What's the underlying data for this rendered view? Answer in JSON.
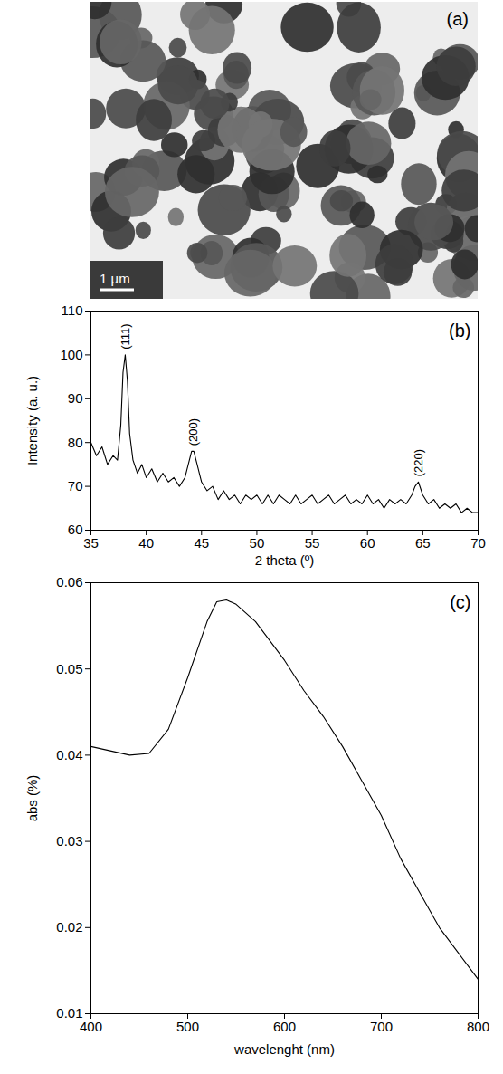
{
  "image_panel": {
    "label": "(a)",
    "scale_bar": "1 µm"
  },
  "chart_data": [
    {
      "type": "line",
      "title": "(b)",
      "x_label": "2 theta (º)",
      "y_label": "Intensity (a. u.)",
      "x": [
        35,
        35.5,
        36,
        36.5,
        37,
        37.4,
        37.7,
        37.9,
        38.1,
        38.3,
        38.5,
        38.8,
        39.2,
        39.6,
        40,
        40.5,
        41,
        41.5,
        42,
        42.5,
        43,
        43.5,
        43.8,
        44.1,
        44.3,
        44.6,
        45,
        45.5,
        46,
        46.5,
        47,
        47.5,
        48,
        48.5,
        49,
        49.5,
        50,
        50.5,
        51,
        51.5,
        52,
        52.5,
        53,
        53.5,
        54,
        54.5,
        55,
        55.5,
        56,
        56.5,
        57,
        57.5,
        58,
        58.5,
        59,
        59.5,
        60,
        60.5,
        61,
        61.5,
        62,
        62.5,
        63,
        63.5,
        64,
        64.3,
        64.6,
        65,
        65.5,
        66,
        66.5,
        67,
        67.5,
        68,
        68.5,
        69,
        69.5,
        70
      ],
      "values": [
        80,
        77,
        79,
        75,
        77,
        76,
        84,
        96,
        100,
        94,
        82,
        76,
        73,
        75,
        72,
        74,
        71,
        73,
        71,
        72,
        70,
        72,
        75,
        78,
        78,
        75,
        71,
        69,
        70,
        67,
        69,
        67,
        68,
        66,
        68,
        67,
        68,
        66,
        68,
        66,
        68,
        67,
        66,
        68,
        66,
        67,
        68,
        66,
        67,
        68,
        66,
        67,
        68,
        66,
        67,
        66,
        68,
        66,
        67,
        65,
        67,
        66,
        67,
        66,
        68,
        70,
        71,
        68,
        66,
        67,
        65,
        66,
        65,
        66,
        64,
        65,
        64,
        64
      ],
      "color": "#000000",
      "xlim": [
        35,
        70
      ],
      "xticks": [
        35,
        40,
        45,
        50,
        55,
        60,
        65,
        70
      ],
      "ylim": [
        60,
        110
      ],
      "yticks": [
        60,
        70,
        80,
        90,
        100,
        110
      ],
      "grid": false,
      "annotations": [
        {
          "text": "(111)",
          "x": 38.1
        },
        {
          "text": "(200)",
          "x": 44.3
        },
        {
          "text": "(220)",
          "x": 64.6
        }
      ]
    },
    {
      "type": "line",
      "title": "(c)",
      "x_label": "wavelenght (nm)",
      "y_label": "abs (%)",
      "x": [
        400,
        420,
        440,
        460,
        480,
        500,
        520,
        530,
        540,
        550,
        560,
        570,
        580,
        600,
        620,
        640,
        660,
        680,
        700,
        720,
        740,
        760,
        780,
        800
      ],
      "values": [
        0.041,
        0.0405,
        0.04,
        0.0402,
        0.043,
        0.049,
        0.0555,
        0.0578,
        0.058,
        0.0575,
        0.0565,
        0.0555,
        0.054,
        0.051,
        0.0475,
        0.0445,
        0.041,
        0.037,
        0.033,
        0.028,
        0.024,
        0.02,
        0.017,
        0.014
      ],
      "color": "#000000",
      "xlim": [
        400,
        800
      ],
      "xticks": [
        400,
        500,
        600,
        700,
        800
      ],
      "ylim": [
        0.01,
        0.06
      ],
      "yticks": [
        0.01,
        0.02,
        0.03,
        0.04,
        0.05,
        0.06
      ],
      "grid": false
    }
  ]
}
